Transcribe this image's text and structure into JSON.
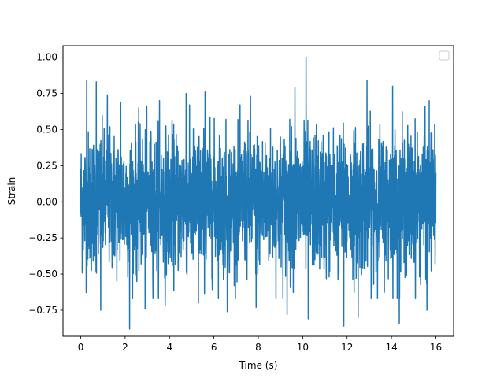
{
  "chart_data": {
    "type": "line",
    "title": "",
    "xlabel": "Time (s)",
    "ylabel": "Strain",
    "xlim": [
      -0.8,
      16.8
    ],
    "ylim": [
      -0.93,
      1.08
    ],
    "x_ticks": [
      0,
      2,
      4,
      6,
      8,
      10,
      12,
      14,
      16
    ],
    "x_tick_labels": [
      "0",
      "2",
      "4",
      "6",
      "8",
      "10",
      "12",
      "14",
      "16"
    ],
    "y_ticks": [
      -0.75,
      -0.5,
      -0.25,
      0.0,
      0.25,
      0.5,
      0.75,
      1.0
    ],
    "y_tick_labels": [
      "−0.75",
      "−0.50",
      "−0.25",
      "0.00",
      "0.25",
      "0.50",
      "0.75",
      "1.00"
    ],
    "grid": false,
    "legend": {
      "placement": "top-right",
      "entries": []
    },
    "series": [
      {
        "color": "#1f77b4",
        "x_range": [
          0,
          16
        ],
        "typical_band": [
          -0.55,
          0.55
        ],
        "peaks": [
          {
            "x": 0.27,
            "y": 0.84
          },
          {
            "x": 0.7,
            "y": 0.83
          },
          {
            "x": 1.2,
            "y": 0.74
          },
          {
            "x": 1.8,
            "y": 0.69
          },
          {
            "x": 3.55,
            "y": 0.7
          },
          {
            "x": 4.75,
            "y": 0.75
          },
          {
            "x": 5.6,
            "y": 0.76
          },
          {
            "x": 7.65,
            "y": 0.73
          },
          {
            "x": 9.65,
            "y": 0.79
          },
          {
            "x": 10.15,
            "y": 1.0
          },
          {
            "x": 12.9,
            "y": 0.84
          },
          {
            "x": 14.05,
            "y": 0.8
          },
          {
            "x": 15.7,
            "y": 0.7
          }
        ],
        "troughs": [
          {
            "x": 0.9,
            "y": -0.75
          },
          {
            "x": 2.2,
            "y": -0.88
          },
          {
            "x": 2.9,
            "y": -0.74
          },
          {
            "x": 3.8,
            "y": -0.72
          },
          {
            "x": 5.3,
            "y": -0.7
          },
          {
            "x": 6.6,
            "y": -0.76
          },
          {
            "x": 7.9,
            "y": -0.73
          },
          {
            "x": 9.3,
            "y": -0.78
          },
          {
            "x": 10.25,
            "y": -0.81
          },
          {
            "x": 11.85,
            "y": -0.86
          },
          {
            "x": 12.5,
            "y": -0.8
          },
          {
            "x": 14.35,
            "y": -0.84
          },
          {
            "x": 15.6,
            "y": -0.75
          }
        ]
      }
    ]
  }
}
